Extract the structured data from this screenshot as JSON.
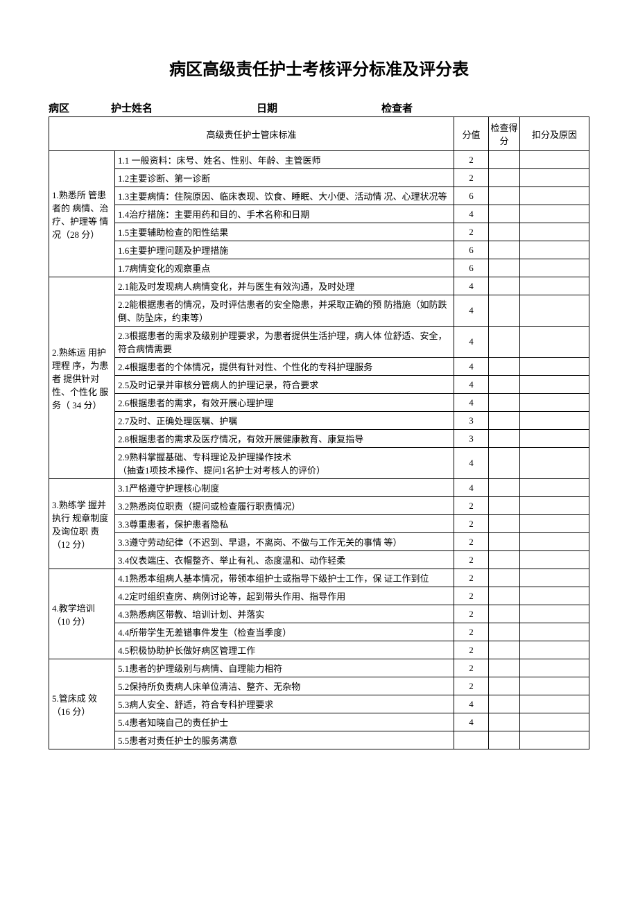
{
  "title": "病区高级责任护士考核评分标准及评分表",
  "formFields": {
    "ward": "病区",
    "nurseName": "护士姓名",
    "date": "日期",
    "examiner": "检查者"
  },
  "tableHeader": {
    "standard": "高级责任护士管床标准",
    "score": "分值",
    "checkScore": "检查得分",
    "deduction": "扣分及原因"
  },
  "sections": [
    {
      "category": "1.熟悉所 管患者的 病情、治 疗、护理等 情况（28 分）",
      "rows": [
        {
          "text": "1.1 一般资料：床号、姓名、性别、年龄、主管医师",
          "score": "2"
        },
        {
          "text": "1.2主要诊断、第一诊断",
          "score": "2"
        },
        {
          "text": "1.3主要病情：住院原因、临床表现、饮食、睡眠、大小便、活动情 况、心理状况等",
          "score": "6"
        },
        {
          "text": "1.4治疗措施：主要用药和目的、手术名称和日期",
          "score": "4"
        },
        {
          "text": "1.5主要辅助检查的阳性结果",
          "score": "2"
        },
        {
          "text": "1.6主要护理问题及护理措施",
          "score": "6"
        },
        {
          "text": "1.7病情变化的观察重点",
          "score": "6"
        }
      ]
    },
    {
      "category": "2.熟练运 用护理程 序，为患者 提供针对 性、个性化 服务（ 34 分）",
      "rows": [
        {
          "text": "2.1能及时发现病人病情变化，并与医生有效沟通，及时处理",
          "score": "4"
        },
        {
          "text": "2.2能根据患者的情况，及时评估患者的安全隐患，并采取正确的预 防措施（如防跌倒、防坠床，约束等）",
          "score": "4"
        },
        {
          "text": "2.3根据患者的需求及级别护理要求，为患者提供生活护理，病人体 位舒适、安全，符合病情需要",
          "score": "4"
        },
        {
          "text": "2.4根据患者的个体情况，提供有针对性、个性化的专科护理服务",
          "score": "4"
        },
        {
          "text": "2.5及时记录并审核分管病人的护理记录，符合要求",
          "score": "4"
        },
        {
          "text": "2.6根据患者的需求，有效开展心理护理",
          "score": "4"
        },
        {
          "text": "2.7及时、正确处理医嘱、护嘱",
          "score": "3"
        },
        {
          "text": "2.8根据患者的需求及医疗情况，有效开展健康教育、康复指导",
          "score": "3"
        },
        {
          "text": "2.9熟料掌握基础、专科理论及护理操作技术\n（抽查1项技术操作、提问1名护士对考核人的评价）",
          "score": "4"
        }
      ]
    },
    {
      "category": "3.熟练学 握并执行 规章制度 及询位职 责（12 分）",
      "rows": [
        {
          "text": "3.1严格遵守护理核心制度",
          "score": "4"
        },
        {
          "text": "3.2熟悉岗位职责（提问或检查履行职责情况）",
          "score": "2"
        },
        {
          "text": "3.3尊重患者，保护患者隐私",
          "score": "2"
        },
        {
          "text": "3.3遵守劳动纪律（不迟到、早退，不离岗、不做与工作无关的事情 等）",
          "score": "2"
        },
        {
          "text": "3.4仪表端庄、衣帽整齐、举止有礼、态度温和、动作轻柔",
          "score": "2"
        }
      ]
    },
    {
      "category": "4.教学培训（10 分）",
      "rows": [
        {
          "text": "4.1熟悉本组病人基本情况，带领本组护士或指导下级护士工作，保 证工作到位",
          "score": "2"
        },
        {
          "text": "4.2定时组织查房、病例讨论等，起到带头作用、指导作用",
          "score": "2"
        },
        {
          "text": "4.3熟悉病区带教、培训计划、并落实",
          "score": "2"
        },
        {
          "text": "4.4所带学生无差错事件发生（检查当季度）",
          "score": "2"
        },
        {
          "text": "4.5积极协助护长做好病区管理工作",
          "score": "2"
        }
      ]
    },
    {
      "category": "5.管床成 效（16 分）",
      "rows": [
        {
          "text": "5.1患者的护理级别与病情、自理能力相符",
          "score": "2"
        },
        {
          "text": "5.2保持所负责病人床单位清洁、整齐、无杂物",
          "score": "2"
        },
        {
          "text": "5.3病人安全、舒适，符合专科护理要求",
          "score": "4"
        },
        {
          "text": "5.4患者知晓自己的责任护士",
          "score": "4"
        },
        {
          "text": "5.5患者对责任护士的服务满意",
          "score": ""
        }
      ]
    }
  ]
}
